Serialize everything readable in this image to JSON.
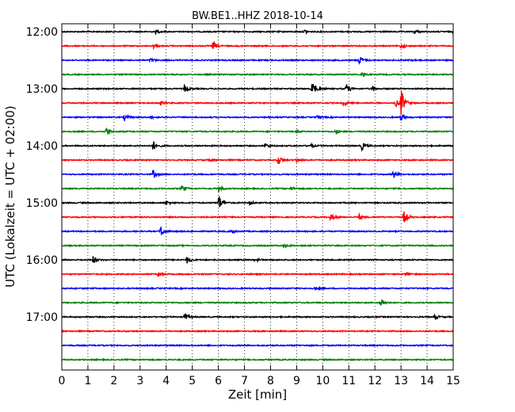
{
  "chart_data": {
    "type": "line",
    "title": "BW.BE1..HHZ 2018-10-14",
    "xlabel": "Zeit  [min]",
    "ylabel": "UTC (Lokalzeit = UTC + 02:00)",
    "xlim": [
      0,
      15
    ],
    "x_ticks": [
      "0",
      "1",
      "2",
      "3",
      "4",
      "5",
      "6",
      "7",
      "8",
      "9",
      "10",
      "11",
      "12",
      "13",
      "14",
      "15"
    ],
    "y_ticks": [
      {
        "label": "12:00",
        "trace": 0
      },
      {
        "label": "13:00",
        "trace": 4
      },
      {
        "label": "14:00",
        "trace": 8
      },
      {
        "label": "15:00",
        "trace": 12
      },
      {
        "label": "16:00",
        "trace": 16
      },
      {
        "label": "17:00",
        "trace": 20
      }
    ],
    "grid": "vertical-dotted",
    "trace_colors": [
      "#000000",
      "#ff0000",
      "#0000ff",
      "#008000"
    ],
    "traces": [
      {
        "start": "12:00",
        "events": [
          [
            3.6,
            0.3
          ],
          [
            9.3,
            0.3
          ],
          [
            13.5,
            0.4
          ],
          [
            15,
            0.3
          ]
        ]
      },
      {
        "start": "12:15",
        "events": [
          [
            3.5,
            0.4
          ],
          [
            5.8,
            0.8
          ],
          [
            13,
            0.4
          ]
        ]
      },
      {
        "start": "12:30",
        "events": [
          [
            3.4,
            0.3
          ],
          [
            11.4,
            0.8
          ],
          [
            13.3,
            0.3
          ]
        ]
      },
      {
        "start": "12:45",
        "events": [
          [
            11.5,
            0.3
          ]
        ]
      },
      {
        "start": "13:00",
        "events": [
          [
            4.7,
            0.7
          ],
          [
            9.6,
            1.6
          ],
          [
            10.9,
            0.9
          ],
          [
            11.9,
            0.3
          ]
        ]
      },
      {
        "start": "13:15",
        "events": [
          [
            3.8,
            0.3
          ],
          [
            10.8,
            0.5
          ],
          [
            12.8,
            0.6
          ],
          [
            13.0,
            2.5
          ]
        ]
      },
      {
        "start": "13:30",
        "events": [
          [
            2.4,
            0.6
          ],
          [
            3.4,
            0.3
          ],
          [
            9.8,
            0.3
          ],
          [
            13.0,
            0.6
          ]
        ]
      },
      {
        "start": "13:45",
        "events": [
          [
            1.7,
            0.8
          ],
          [
            9.0,
            0.3
          ],
          [
            10.5,
            0.3
          ]
        ]
      },
      {
        "start": "14:00",
        "events": [
          [
            3.5,
            0.9
          ],
          [
            7.8,
            0.4
          ],
          [
            9.5,
            0.4
          ],
          [
            11.5,
            0.7
          ]
        ]
      },
      {
        "start": "14:15",
        "events": [
          [
            5.7,
            0.3
          ],
          [
            8.3,
            0.9
          ],
          [
            9.0,
            0.3
          ]
        ]
      },
      {
        "start": "14:30",
        "events": [
          [
            3.5,
            0.8
          ],
          [
            12.7,
            0.8
          ]
        ]
      },
      {
        "start": "14:45",
        "events": [
          [
            4.6,
            0.6
          ],
          [
            6.0,
            0.7
          ],
          [
            8.8,
            0.3
          ]
        ]
      },
      {
        "start": "15:00",
        "events": [
          [
            4.0,
            0.4
          ],
          [
            6.0,
            1.6
          ],
          [
            7.2,
            0.3
          ]
        ]
      },
      {
        "start": "15:15",
        "events": [
          [
            10.3,
            0.8
          ],
          [
            11.4,
            0.4
          ],
          [
            13.1,
            1.2
          ]
        ]
      },
      {
        "start": "15:30",
        "events": [
          [
            3.8,
            1.0
          ],
          [
            6.5,
            0.3
          ]
        ]
      },
      {
        "start": "15:45",
        "events": [
          [
            8.5,
            0.3
          ]
        ]
      },
      {
        "start": "16:00",
        "events": [
          [
            1.2,
            0.7
          ],
          [
            4.8,
            0.6
          ],
          [
            7.4,
            0.3
          ]
        ]
      },
      {
        "start": "16:15",
        "events": [
          [
            3.7,
            0.5
          ],
          [
            13.2,
            0.3
          ]
        ]
      },
      {
        "start": "16:30",
        "events": [
          [
            9.7,
            0.3
          ]
        ]
      },
      {
        "start": "16:45",
        "events": [
          [
            12.2,
            1.0
          ]
        ]
      },
      {
        "start": "17:00",
        "events": [
          [
            4.7,
            0.8
          ],
          [
            14.3,
            0.4
          ]
        ]
      },
      {
        "start": "17:15",
        "events": []
      },
      {
        "start": "17:30",
        "events": []
      },
      {
        "start": "17:45",
        "events": []
      }
    ]
  }
}
